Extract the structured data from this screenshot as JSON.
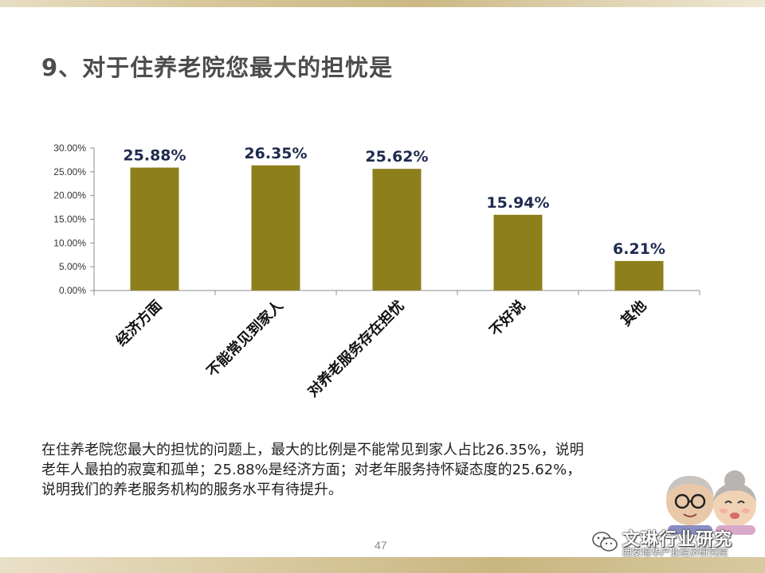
{
  "slide": {
    "title": "9、对于住养老院您最大的担忧是",
    "summary": "在住养老院您最大的担忧的问题上，最大的比例是不能常见到家人占比26.35%，说明老年人最拍的寂寞和孤单；25.88%是经济方面；对老年服务持怀疑态度的25.62%，说明我们的养老服务机构的服务水平有待提升。",
    "page_number": "47"
  },
  "branding": {
    "name": "文琳行业研究",
    "subtitle": "西安培华产业经济研究院",
    "icon": "wechat-icon"
  },
  "chart_data": {
    "type": "bar",
    "categories": [
      "经济方面",
      "不能常见到家人",
      "对养老服务存在担忧",
      "不好说",
      "其他"
    ],
    "values": [
      25.88,
      26.35,
      25.62,
      15.94,
      6.21
    ],
    "value_labels": [
      "25.88%",
      "26.35%",
      "25.62%",
      "15.94%",
      "6.21%"
    ],
    "ylim": [
      0,
      30
    ],
    "yticks": [
      0,
      5,
      10,
      15,
      20,
      25,
      30
    ],
    "ytick_labels": [
      "0.00%",
      "5.00%",
      "10.00%",
      "15.00%",
      "20.00%",
      "25.00%",
      "30.00%"
    ],
    "title": "",
    "xlabel": "",
    "ylabel": "",
    "grid": false,
    "bar_color": "#8e7f1d",
    "label_color": "#1f2b4e"
  }
}
